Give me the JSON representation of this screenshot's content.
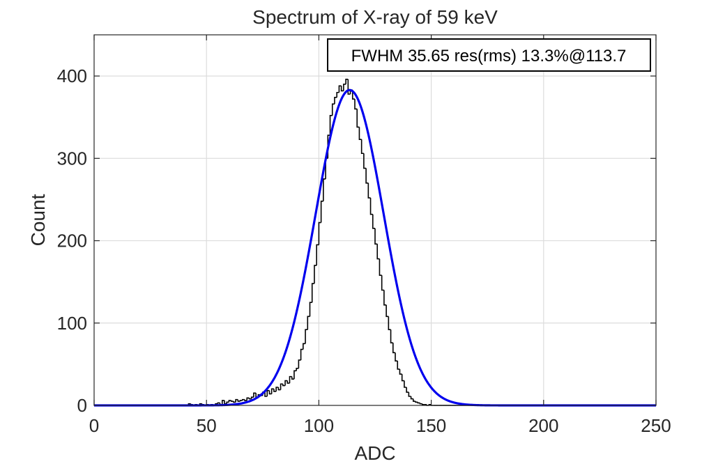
{
  "chart_data": {
    "type": "histogram",
    "title": "Spectrum of X-ray of 59 keV",
    "xlabel": "ADC",
    "ylabel": "Count",
    "xlim": [
      0,
      250
    ],
    "ylim": [
      0,
      450
    ],
    "xticks": [
      0,
      50,
      100,
      150,
      200,
      250
    ],
    "yticks": [
      0,
      100,
      200,
      300,
      400
    ],
    "grid": true,
    "annotation": "FWHM 35.65 res(rms) 13.3%@113.7",
    "annotation_position": "top-right",
    "histogram": {
      "color": "#000000",
      "bin_width": 1,
      "x": [
        40,
        41,
        42,
        43,
        44,
        45,
        46,
        47,
        48,
        49,
        50,
        51,
        52,
        53,
        54,
        55,
        56,
        57,
        58,
        59,
        60,
        61,
        62,
        63,
        64,
        65,
        66,
        67,
        68,
        69,
        70,
        71,
        72,
        73,
        74,
        75,
        76,
        77,
        78,
        79,
        80,
        81,
        82,
        83,
        84,
        85,
        86,
        87,
        88,
        89,
        90,
        91,
        92,
        93,
        94,
        95,
        96,
        97,
        98,
        99,
        100,
        101,
        102,
        103,
        104,
        105,
        106,
        107,
        108,
        109,
        110,
        111,
        112,
        113,
        114,
        115,
        116,
        117,
        118,
        119,
        120,
        121,
        122,
        123,
        124,
        125,
        126,
        127,
        128,
        129,
        130,
        131,
        132,
        133,
        134,
        135,
        136,
        137,
        138,
        139,
        140,
        141,
        142,
        143,
        144,
        145,
        146,
        147,
        148,
        149,
        150,
        151,
        152,
        153,
        154,
        155,
        156,
        157,
        158,
        159,
        160
      ],
      "counts": [
        0,
        0,
        2,
        1,
        0,
        1,
        0,
        2,
        1,
        0,
        1,
        0,
        1,
        0,
        2,
        3,
        1,
        6,
        2,
        4,
        6,
        5,
        4,
        7,
        5,
        6,
        7,
        6,
        9,
        8,
        10,
        15,
        9,
        13,
        12,
        16,
        11,
        18,
        14,
        20,
        17,
        22,
        19,
        26,
        24,
        30,
        27,
        35,
        32,
        42,
        45,
        55,
        68,
        75,
        92,
        108,
        125,
        148,
        170,
        195,
        222,
        248,
        275,
        300,
        328,
        352,
        366,
        374,
        380,
        388,
        382,
        390,
        396,
        378,
        383,
        372,
        360,
        338,
        323,
        306,
        288,
        270,
        252,
        232,
        215,
        196,
        178,
        158,
        140,
        122,
        108,
        92,
        76,
        64,
        54,
        44,
        38,
        30,
        22,
        16,
        11,
        8,
        5,
        4,
        3,
        2,
        1,
        1,
        0,
        1,
        0,
        0,
        0,
        0,
        0,
        0,
        0,
        0,
        0,
        0,
        0
      ]
    },
    "series": [
      {
        "type": "gaussian-fit",
        "color": "#0000ee",
        "amplitude": 383,
        "mean": 113.7,
        "sigma": 15.14
      }
    ]
  }
}
